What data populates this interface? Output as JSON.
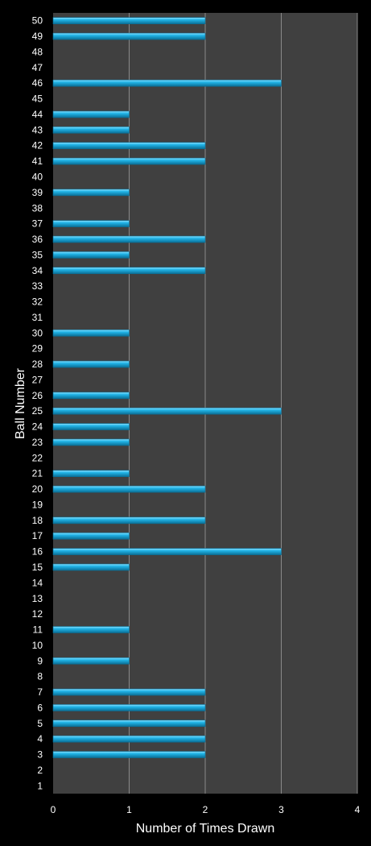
{
  "chart_data": {
    "type": "bar",
    "orientation": "horizontal",
    "xlabel": "Number of Times Drawn",
    "ylabel": "Ball Number",
    "xlim": [
      0,
      4
    ],
    "xticks": [
      0,
      1,
      2,
      3,
      4
    ],
    "grid": "vertical",
    "colors": {
      "background": "#000000",
      "plot_area": "#404040",
      "bar": "#22b5e8",
      "bar_light": "#8fe2ff",
      "bar_dark": "#0a6f96",
      "gridline": "#8a8a8a",
      "text": "#ffffff"
    },
    "categories": [
      "1",
      "2",
      "3",
      "4",
      "5",
      "6",
      "7",
      "8",
      "9",
      "10",
      "11",
      "12",
      "13",
      "14",
      "15",
      "16",
      "17",
      "18",
      "19",
      "20",
      "21",
      "22",
      "23",
      "24",
      "25",
      "26",
      "27",
      "28",
      "29",
      "30",
      "31",
      "32",
      "33",
      "34",
      "35",
      "36",
      "37",
      "38",
      "39",
      "40",
      "41",
      "42",
      "43",
      "44",
      "45",
      "46",
      "47",
      "48",
      "49",
      "50"
    ],
    "values": [
      0,
      0,
      2,
      2,
      2,
      2,
      2,
      0,
      1,
      0,
      1,
      0,
      0,
      0,
      1,
      3,
      1,
      2,
      0,
      2,
      1,
      0,
      1,
      1,
      3,
      1,
      0,
      1,
      0,
      1,
      0,
      0,
      0,
      2,
      1,
      2,
      1,
      0,
      1,
      0,
      2,
      2,
      1,
      1,
      0,
      3,
      0,
      0,
      2,
      2
    ]
  }
}
